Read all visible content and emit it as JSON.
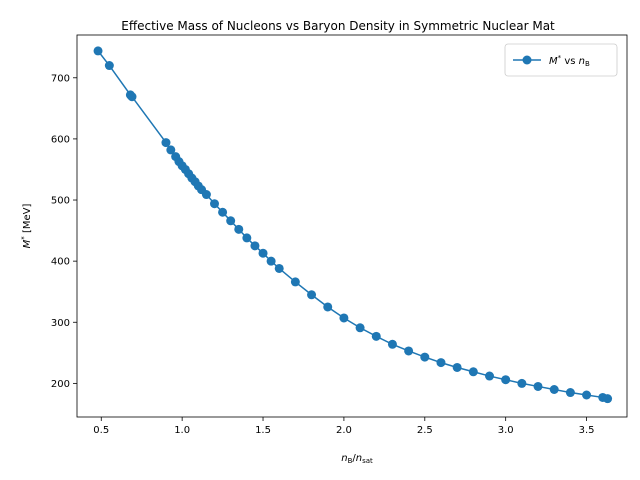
{
  "chart_data": {
    "type": "line",
    "title": "Effective Mass of Nucleons vs Baryon Density in Symmetric Nuclear Mat",
    "xlabel": "n_B/n_sat",
    "ylabel": "M* [MeV]",
    "xlim": [
      0.35,
      3.75
    ],
    "ylim": [
      145,
      770
    ],
    "xticks": [
      0.5,
      1.0,
      1.5,
      2.0,
      2.5,
      3.0,
      3.5
    ],
    "xtick_labels": [
      "0.5",
      "1.0",
      "1.5",
      "2.0",
      "2.5",
      "3.0",
      "3.5"
    ],
    "yticks": [
      200,
      300,
      400,
      500,
      600,
      700
    ],
    "ytick_labels": [
      "200",
      "300",
      "400",
      "500",
      "600",
      "700"
    ],
    "grid": false,
    "legend": {
      "position": "top-right",
      "label": "M* vs n_B"
    },
    "series_color": "#1f77b4",
    "series": [
      {
        "name": "M* vs n_B",
        "marker": "circle",
        "x": [
          0.48,
          0.55,
          0.68,
          0.69,
          0.9,
          0.93,
          0.96,
          0.98,
          1.0,
          1.02,
          1.04,
          1.06,
          1.08,
          1.1,
          1.12,
          1.15,
          1.2,
          1.25,
          1.3,
          1.35,
          1.4,
          1.45,
          1.5,
          1.55,
          1.6,
          1.7,
          1.8,
          1.9,
          2.0,
          2.1,
          2.2,
          2.3,
          2.4,
          2.5,
          2.6,
          2.7,
          2.8,
          2.9,
          3.0,
          3.1,
          3.2,
          3.3,
          3.4,
          3.5,
          3.6,
          3.63
        ],
        "y": [
          744,
          720,
          672,
          669,
          594,
          582,
          571,
          563,
          556,
          550,
          543,
          536,
          530,
          523,
          517,
          509,
          494,
          480,
          466,
          452,
          438,
          425,
          413,
          400,
          388,
          366,
          345,
          325,
          307,
          291,
          277,
          264,
          253,
          243,
          234,
          226,
          219,
          212,
          206,
          200,
          195,
          190,
          185,
          181,
          177,
          175
        ]
      }
    ]
  }
}
